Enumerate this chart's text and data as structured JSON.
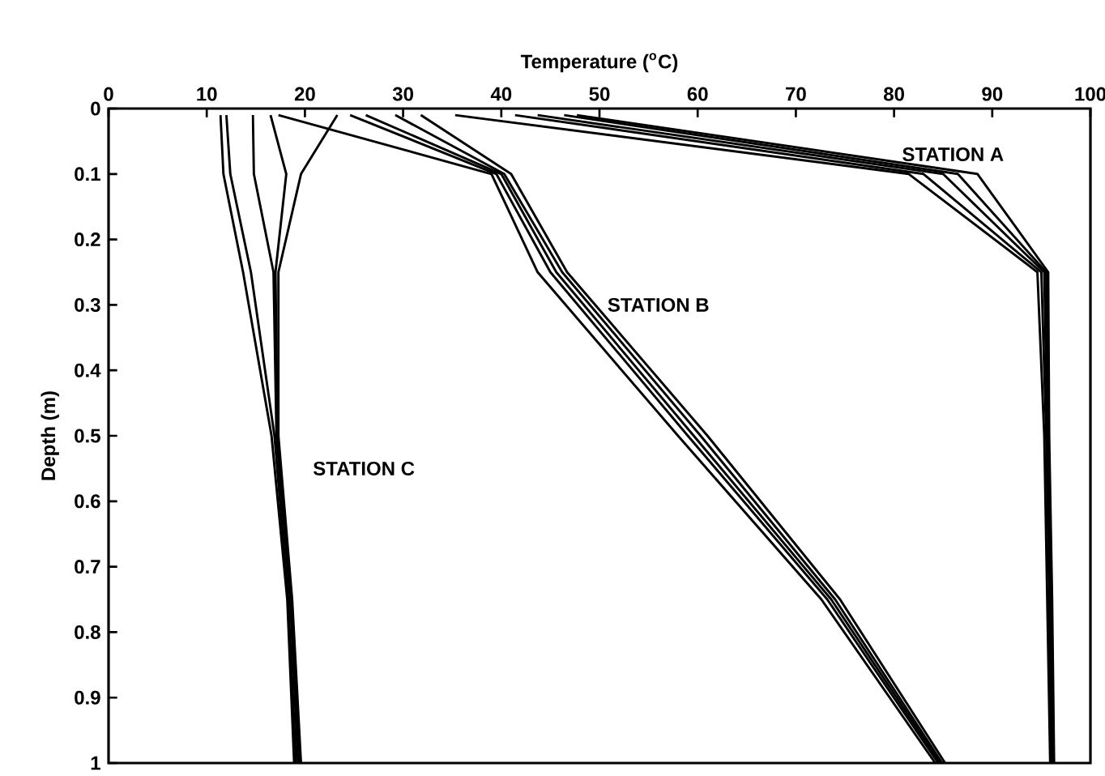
{
  "chart_data": {
    "type": "line",
    "xlabel": "Temperature ($^{o}$C)",
    "ylabel": "Depth (m)",
    "xlim": [
      0,
      100
    ],
    "xticks": [
      0,
      10,
      20,
      30,
      40,
      50,
      60,
      70,
      80,
      90,
      100
    ],
    "ylim": [
      1,
      0
    ],
    "yticks": [
      0,
      0.1,
      0.2,
      0.3,
      0.4,
      0.5,
      0.6,
      0.7,
      0.8,
      0.9,
      1
    ],
    "line_style": "solid",
    "grid": false,
    "annotations": [
      "STATION A",
      "STATION B",
      "STATION C"
    ],
    "series": [
      {
        "color": "#000000",
        "x": [
          35.3,
          81.5,
          94.6,
          95.3,
          95.6,
          95.9
        ],
        "values": [
          0.01,
          0.1,
          0.25,
          0.5,
          0.75,
          1
        ]
      },
      {
        "color": "#000000",
        "x": [
          41.4,
          83.0,
          95.0,
          95.5,
          95.8,
          96.0
        ],
        "values": [
          0.01,
          0.1,
          0.25,
          0.5,
          0.75,
          1
        ]
      },
      {
        "color": "#000000",
        "x": [
          43.7,
          85.0,
          95.3,
          95.6,
          95.9,
          96.1
        ],
        "values": [
          0.01,
          0.1,
          0.25,
          0.5,
          0.75,
          1
        ]
      },
      {
        "color": "#000000",
        "x": [
          46.4,
          86.5,
          95.5,
          95.7,
          96.0,
          96.2
        ],
        "values": [
          0.01,
          0.1,
          0.25,
          0.5,
          0.75,
          1
        ]
      },
      {
        "color": "#000000",
        "x": [
          47.7,
          88.5,
          95.7,
          95.8,
          96.1,
          96.3
        ],
        "values": [
          0.01,
          0.1,
          0.25,
          0.5,
          0.75,
          1
        ]
      },
      {
        "color": "#000000",
        "x": [
          17.3,
          39.0,
          43.7,
          58.0,
          72.6,
          84.2
        ],
        "values": [
          0.01,
          0.1,
          0.25,
          0.5,
          0.75,
          1
        ]
      },
      {
        "color": "#000000",
        "x": [
          24.6,
          39.5,
          45.0,
          59.0,
          73.2,
          84.5
        ],
        "values": [
          0.01,
          0.1,
          0.25,
          0.5,
          0.75,
          1
        ]
      },
      {
        "color": "#000000",
        "x": [
          26.2,
          40.0,
          45.6,
          59.6,
          73.6,
          84.7
        ],
        "values": [
          0.01,
          0.1,
          0.25,
          0.5,
          0.75,
          1
        ]
      },
      {
        "color": "#000000",
        "x": [
          29.2,
          40.3,
          46.2,
          60.3,
          74.0,
          84.9
        ],
        "values": [
          0.01,
          0.1,
          0.25,
          0.5,
          0.75,
          1
        ]
      },
      {
        "color": "#000000",
        "x": [
          31.8,
          41.0,
          46.7,
          61.0,
          74.5,
          85.2
        ],
        "values": [
          0.01,
          0.1,
          0.25,
          0.5,
          0.75,
          1
        ]
      },
      {
        "color": "#000000",
        "x": [
          11.4,
          11.7,
          13.7,
          16.6,
          18.2,
          18.9
        ],
        "values": [
          0.01,
          0.1,
          0.25,
          0.5,
          0.75,
          1
        ]
      },
      {
        "color": "#000000",
        "x": [
          12.0,
          12.4,
          14.5,
          16.9,
          18.3,
          19.1
        ],
        "values": [
          0.01,
          0.1,
          0.25,
          0.5,
          0.75,
          1
        ]
      },
      {
        "color": "#000000",
        "x": [
          14.7,
          14.8,
          16.8,
          17.1,
          18.5,
          19.3
        ],
        "values": [
          0.01,
          0.1,
          0.25,
          0.5,
          0.75,
          1
        ]
      },
      {
        "color": "#000000",
        "x": [
          16.5,
          18.1,
          17.0,
          17.2,
          18.6,
          19.5
        ],
        "values": [
          0.01,
          0.1,
          0.25,
          0.5,
          0.75,
          1
        ]
      },
      {
        "color": "#000000",
        "x": [
          23.3,
          19.6,
          17.3,
          17.3,
          18.7,
          19.6
        ],
        "values": [
          0.01,
          0.1,
          0.25,
          0.5,
          0.75,
          1
        ]
      }
    ]
  }
}
